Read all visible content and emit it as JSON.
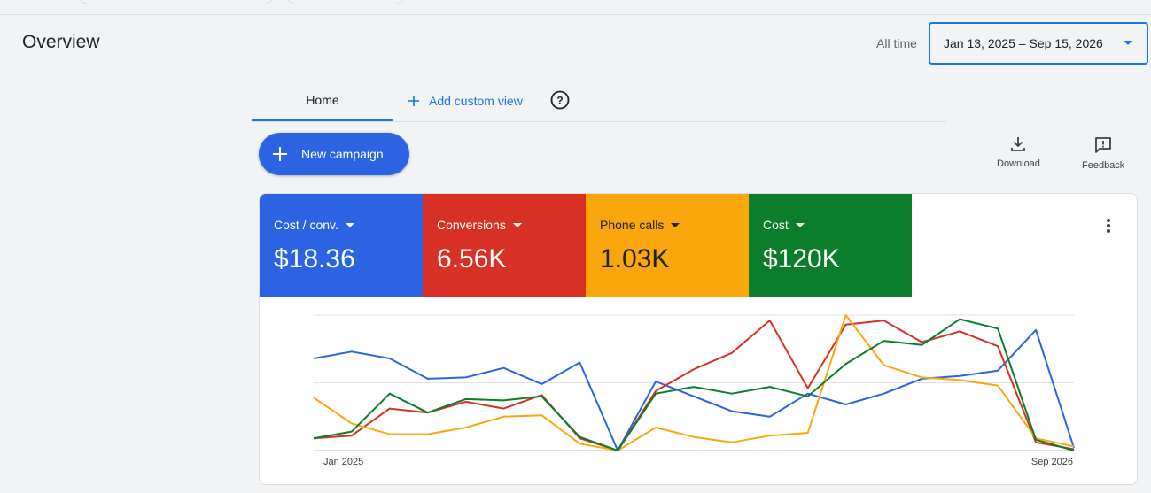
{
  "header": {
    "title": "Overview",
    "date_range_label": "All time",
    "date_range_value": "Jan 13, 2025 – Sep 15, 2026"
  },
  "tabs": [
    {
      "label": "Home",
      "active": true
    },
    {
      "label": "Add custom view",
      "active": false
    }
  ],
  "toolbar": {
    "new_campaign_label": "New campaign",
    "download_label": "Download",
    "feedback_label": "Feedback"
  },
  "metrics": [
    {
      "label": "Cost / conv.",
      "value": "$18.36",
      "color": "#2b63e3"
    },
    {
      "label": "Conversions",
      "value": "6.56K",
      "color": "#d93025"
    },
    {
      "label": "Phone calls",
      "value": "1.03K",
      "color": "#f9a70c"
    },
    {
      "label": "Cost",
      "value": "$120K",
      "color": "#0b7d2c"
    }
  ],
  "chart_data": {
    "type": "line",
    "x_start_label": "Jan 2025",
    "x_end_label": "Sep 2026",
    "ylim": [
      0,
      100
    ],
    "grid": true,
    "series": [
      {
        "name": "Cost / conv.",
        "color": "#2b63e3",
        "values": [
          68,
          73,
          68,
          53,
          54,
          61,
          49,
          65,
          0,
          51,
          40,
          29,
          25,
          42,
          34,
          42,
          53,
          55,
          59,
          89,
          2
        ]
      },
      {
        "name": "Conversions",
        "color": "#d93025",
        "values": [
          9,
          11,
          31,
          28,
          36,
          31,
          41,
          9,
          0,
          44,
          60,
          72,
          96,
          46,
          93,
          96,
          80,
          88,
          77,
          6,
          1
        ]
      },
      {
        "name": "Phone calls",
        "color": "#f9a70c",
        "values": [
          39,
          20,
          12,
          12,
          17,
          25,
          26,
          5,
          0,
          17,
          10,
          6,
          11,
          13,
          100,
          63,
          54,
          52,
          48,
          9,
          3
        ]
      },
      {
        "name": "Cost",
        "color": "#0b7d2c",
        "values": [
          9,
          14,
          42,
          28,
          38,
          37,
          40,
          10,
          0,
          42,
          47,
          42,
          47,
          40,
          64,
          81,
          78,
          97,
          90,
          8,
          0
        ]
      }
    ]
  }
}
